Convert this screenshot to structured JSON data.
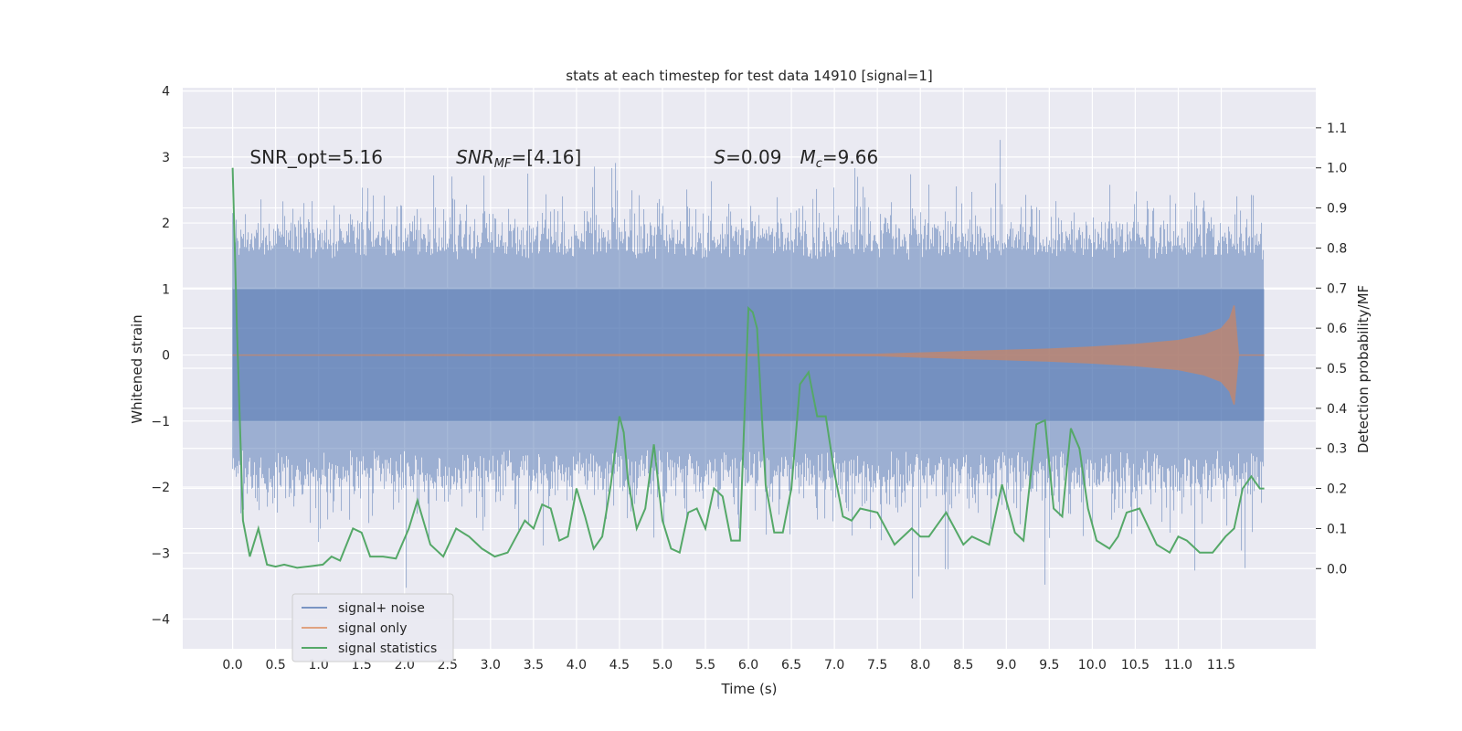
{
  "chart_data": {
    "type": "line",
    "title": "stats at each timestep for test data 14910 [signal=1]",
    "xlabel": "Time (s)",
    "ylabel_left": "Whitened strain",
    "ylabel_right": "Detection probability/MF",
    "xlim": [
      -0.58,
      12.6
    ],
    "ylim_left": [
      -4.45,
      4.05
    ],
    "ylim_right": [
      -0.2,
      1.2
    ],
    "x_ticks": [
      0.0,
      0.5,
      1.0,
      1.5,
      2.0,
      2.5,
      3.0,
      3.5,
      4.0,
      4.5,
      5.0,
      5.5,
      6.0,
      6.5,
      7.0,
      7.5,
      8.0,
      8.5,
      9.0,
      9.5,
      10.0,
      10.5,
      11.0,
      11.5
    ],
    "x_tick_labels": [
      "0.0",
      "0.5",
      "1.0",
      "1.5",
      "2.0",
      "2.5",
      "3.0",
      "3.5",
      "4.0",
      "4.5",
      "5.0",
      "5.5",
      "6.0",
      "6.5",
      "7.0",
      "7.5",
      "8.0",
      "8.5",
      "9.0",
      "9.5",
      "10.0",
      "10.5",
      "11.0",
      "11.5"
    ],
    "y_left_ticks": [
      -4,
      -3,
      -2,
      -1,
      0,
      1,
      2,
      3,
      4
    ],
    "y_left_tick_labels": [
      "−4",
      "−3",
      "−2",
      "−1",
      "0",
      "1",
      "2",
      "3",
      "4"
    ],
    "y_right_ticks": [
      0.0,
      0.1,
      0.2,
      0.3,
      0.4,
      0.5,
      0.6,
      0.7,
      0.8,
      0.9,
      1.0,
      1.1
    ],
    "y_right_tick_labels": [
      "0.0",
      "0.1",
      "0.2",
      "0.3",
      "0.4",
      "0.5",
      "0.6",
      "0.7",
      "0.8",
      "0.9",
      "1.0",
      "1.1"
    ],
    "annotations": [
      {
        "text": "SNR_opt=5.16",
        "x": 0.2,
        "y": 3.0
      },
      {
        "text": "SNR_MF=[4.16]",
        "x": 2.6,
        "y": 3.0
      },
      {
        "text": "S=0.09",
        "x": 5.6,
        "y": 3.0
      },
      {
        "text": "M_c=9.66",
        "x": 6.6,
        "y": 3.0
      }
    ],
    "series": [
      {
        "name": "signal+ noise",
        "axis": "left",
        "color": "#4c72b0",
        "alpha": 0.5,
        "x_range": [
          0.0,
          12.0
        ],
        "envelope_typical": [
          -1.8,
          1.8
        ],
        "envelope_extreme": [
          -4.1,
          3.65
        ]
      },
      {
        "name": "signal only",
        "axis": "left",
        "color": "#dd8452",
        "alpha": 0.5,
        "x": [
          0.0,
          7.5,
          8.0,
          8.5,
          9.0,
          9.5,
          10.0,
          10.5,
          11.0,
          11.3,
          11.5,
          11.6,
          11.65,
          11.7,
          12.0
        ],
        "amplitude": [
          0.0,
          0.01,
          0.03,
          0.05,
          0.07,
          0.09,
          0.12,
          0.16,
          0.22,
          0.3,
          0.4,
          0.55,
          0.75,
          0.0,
          0.0
        ]
      },
      {
        "name": "signal statistics",
        "axis": "right",
        "color": "#55a868",
        "x": [
          0.0,
          0.05,
          0.12,
          0.2,
          0.3,
          0.4,
          0.5,
          0.6,
          0.75,
          0.9,
          1.05,
          1.15,
          1.25,
          1.4,
          1.5,
          1.6,
          1.75,
          1.9,
          2.05,
          2.15,
          2.3,
          2.45,
          2.6,
          2.75,
          2.9,
          3.05,
          3.2,
          3.3,
          3.4,
          3.5,
          3.6,
          3.7,
          3.8,
          3.9,
          4.0,
          4.1,
          4.2,
          4.3,
          4.4,
          4.5,
          4.55,
          4.6,
          4.7,
          4.8,
          4.9,
          5.0,
          5.1,
          5.2,
          5.3,
          5.4,
          5.5,
          5.6,
          5.7,
          5.8,
          5.9,
          6.0,
          6.05,
          6.1,
          6.2,
          6.3,
          6.4,
          6.5,
          6.6,
          6.7,
          6.8,
          6.9,
          7.0,
          7.1,
          7.2,
          7.3,
          7.5,
          7.7,
          7.9,
          8.0,
          8.1,
          8.3,
          8.5,
          8.6,
          8.8,
          8.95,
          9.1,
          9.2,
          9.35,
          9.45,
          9.55,
          9.65,
          9.75,
          9.85,
          9.95,
          10.05,
          10.2,
          10.3,
          10.4,
          10.55,
          10.75,
          10.9,
          11.0,
          11.1,
          11.25,
          11.4,
          11.55,
          11.65,
          11.75,
          11.85,
          11.95,
          12.0
        ],
        "y": [
          1.0,
          0.6,
          0.12,
          0.03,
          0.1,
          0.01,
          0.005,
          0.01,
          0.002,
          0.006,
          0.01,
          0.03,
          0.02,
          0.1,
          0.09,
          0.03,
          0.03,
          0.025,
          0.1,
          0.17,
          0.06,
          0.03,
          0.1,
          0.08,
          0.05,
          0.03,
          0.04,
          0.08,
          0.12,
          0.1,
          0.16,
          0.15,
          0.07,
          0.08,
          0.2,
          0.13,
          0.05,
          0.08,
          0.21,
          0.38,
          0.34,
          0.22,
          0.1,
          0.15,
          0.31,
          0.12,
          0.05,
          0.04,
          0.14,
          0.15,
          0.1,
          0.2,
          0.18,
          0.07,
          0.07,
          0.65,
          0.64,
          0.6,
          0.21,
          0.09,
          0.09,
          0.2,
          0.46,
          0.49,
          0.38,
          0.38,
          0.24,
          0.13,
          0.12,
          0.15,
          0.14,
          0.06,
          0.1,
          0.08,
          0.08,
          0.14,
          0.06,
          0.08,
          0.06,
          0.21,
          0.09,
          0.07,
          0.36,
          0.37,
          0.15,
          0.13,
          0.35,
          0.3,
          0.15,
          0.07,
          0.05,
          0.08,
          0.14,
          0.15,
          0.06,
          0.04,
          0.08,
          0.07,
          0.04,
          0.04,
          0.08,
          0.1,
          0.2,
          0.23,
          0.2,
          0.2
        ]
      }
    ],
    "legend": {
      "placement": "lower-left",
      "entries": [
        "signal+ noise",
        "signal only",
        "signal statistics"
      ]
    },
    "grid": true,
    "background": "#eaeaf2"
  }
}
